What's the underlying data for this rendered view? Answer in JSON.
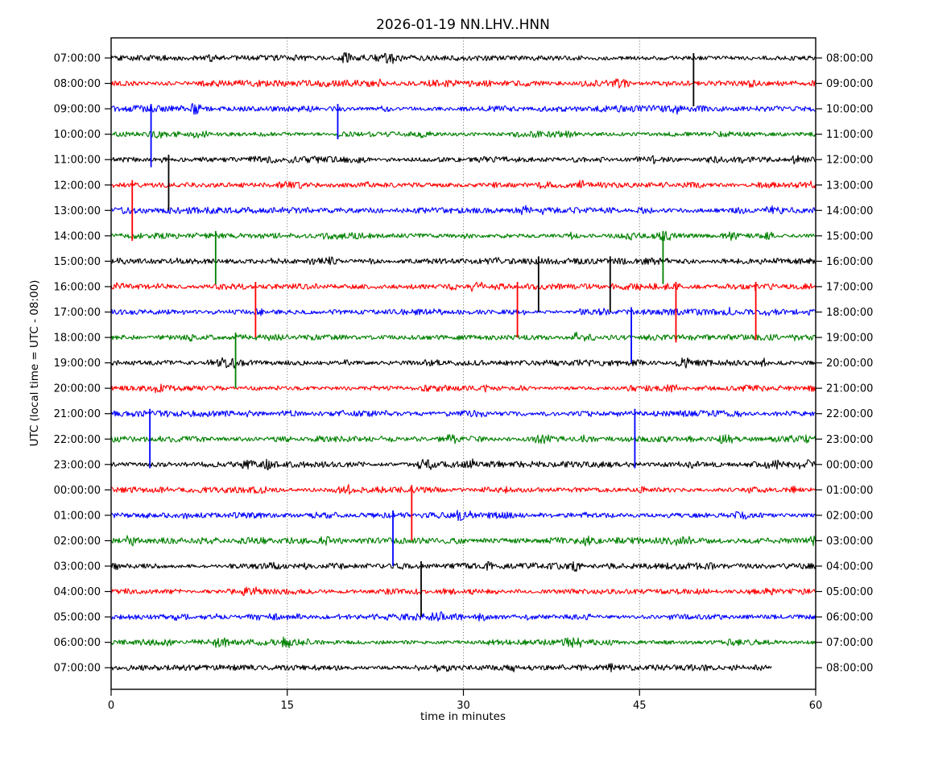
{
  "chart_data": {
    "type": "line",
    "variant": "helicorder-drumplot",
    "title": "2026-01-19 NN.LHV..HNN",
    "xlabel": "time in minutes",
    "ylabel": "UTC (local time = UTC - 08:00)",
    "xlim": [
      0,
      60
    ],
    "xticks": [
      0,
      15,
      30,
      45,
      60
    ],
    "grid_minutes": [
      15,
      30,
      45
    ],
    "grid_style": "dotted",
    "legend": "none",
    "minutes_per_row": 60,
    "last_row_end_minute": 56.2,
    "trace_colors": {
      "black": "#000000",
      "red": "#ff0000",
      "blue": "#0000ff",
      "green": "#008000"
    },
    "rows": [
      {
        "utc": "07:00:00",
        "local": "08:00:00",
        "color": "black"
      },
      {
        "utc": "08:00:00",
        "local": "09:00:00",
        "color": "red"
      },
      {
        "utc": "09:00:00",
        "local": "10:00:00",
        "color": "blue"
      },
      {
        "utc": "10:00:00",
        "local": "11:00:00",
        "color": "green"
      },
      {
        "utc": "11:00:00",
        "local": "12:00:00",
        "color": "black"
      },
      {
        "utc": "12:00:00",
        "local": "13:00:00",
        "color": "red"
      },
      {
        "utc": "13:00:00",
        "local": "14:00:00",
        "color": "blue"
      },
      {
        "utc": "14:00:00",
        "local": "15:00:00",
        "color": "green"
      },
      {
        "utc": "15:00:00",
        "local": "16:00:00",
        "color": "black"
      },
      {
        "utc": "16:00:00",
        "local": "17:00:00",
        "color": "red"
      },
      {
        "utc": "17:00:00",
        "local": "18:00:00",
        "color": "blue"
      },
      {
        "utc": "18:00:00",
        "local": "19:00:00",
        "color": "green"
      },
      {
        "utc": "19:00:00",
        "local": "20:00:00",
        "color": "black"
      },
      {
        "utc": "20:00:00",
        "local": "21:00:00",
        "color": "red"
      },
      {
        "utc": "21:00:00",
        "local": "22:00:00",
        "color": "blue"
      },
      {
        "utc": "22:00:00",
        "local": "23:00:00",
        "color": "green"
      },
      {
        "utc": "23:00:00",
        "local": "00:00:00",
        "color": "black"
      },
      {
        "utc": "00:00:00",
        "local": "01:00:00",
        "color": "red"
      },
      {
        "utc": "01:00:00",
        "local": "02:00:00",
        "color": "blue"
      },
      {
        "utc": "02:00:00",
        "local": "03:00:00",
        "color": "green"
      },
      {
        "utc": "03:00:00",
        "local": "04:00:00",
        "color": "black"
      },
      {
        "utc": "04:00:00",
        "local": "05:00:00",
        "color": "red"
      },
      {
        "utc": "05:00:00",
        "local": "06:00:00",
        "color": "blue"
      },
      {
        "utc": "06:00:00",
        "local": "07:00:00",
        "color": "green"
      },
      {
        "utc": "07:00:00",
        "local": "08:00:00",
        "color": "black"
      }
    ],
    "events": [
      {
        "row": 0,
        "row_utc": "07:00:00",
        "minute": 49.6,
        "down_rows": 1.9
      },
      {
        "row": 2,
        "row_utc": "09:00:00",
        "minute": 3.4,
        "down_rows": 2.3
      },
      {
        "row": 2,
        "row_utc": "09:00:00",
        "minute": 19.3,
        "down_rows": 1.2
      },
      {
        "row": 4,
        "row_utc": "11:00:00",
        "minute": 4.9,
        "down_rows": 2.0
      },
      {
        "row": 5,
        "row_utc": "12:00:00",
        "minute": 1.8,
        "down_rows": 2.2
      },
      {
        "row": 7,
        "row_utc": "14:00:00",
        "minute": 8.9,
        "down_rows": 1.9
      },
      {
        "row": 7,
        "row_utc": "14:00:00",
        "minute": 47.0,
        "down_rows": 1.9
      },
      {
        "row": 8,
        "row_utc": "15:00:00",
        "minute": 36.4,
        "down_rows": 2.0
      },
      {
        "row": 8,
        "row_utc": "15:00:00",
        "minute": 42.5,
        "down_rows": 2.0
      },
      {
        "row": 9,
        "row_utc": "16:00:00",
        "minute": 12.3,
        "down_rows": 2.0
      },
      {
        "row": 9,
        "row_utc": "16:00:00",
        "minute": 34.6,
        "down_rows": 2.0
      },
      {
        "row": 9,
        "row_utc": "16:00:00",
        "minute": 48.1,
        "down_rows": 2.2
      },
      {
        "row": 9,
        "row_utc": "16:00:00",
        "minute": 54.9,
        "down_rows": 2.1
      },
      {
        "row": 10,
        "row_utc": "17:00:00",
        "minute": 44.3,
        "down_rows": 2.0
      },
      {
        "row": 11,
        "row_utc": "18:00:00",
        "minute": 10.6,
        "down_rows": 2.0
      },
      {
        "row": 14,
        "row_utc": "21:00:00",
        "minute": 3.3,
        "down_rows": 2.15
      },
      {
        "row": 14,
        "row_utc": "21:00:00",
        "minute": 44.6,
        "down_rows": 2.15
      },
      {
        "row": 17,
        "row_utc": "00:00:00",
        "minute": 25.6,
        "down_rows": 2.0
      },
      {
        "row": 18,
        "row_utc": "01:00:00",
        "minute": 24.0,
        "down_rows": 2.0
      },
      {
        "row": 20,
        "row_utc": "03:00:00",
        "minute": 26.4,
        "down_rows": 2.0
      }
    ]
  }
}
